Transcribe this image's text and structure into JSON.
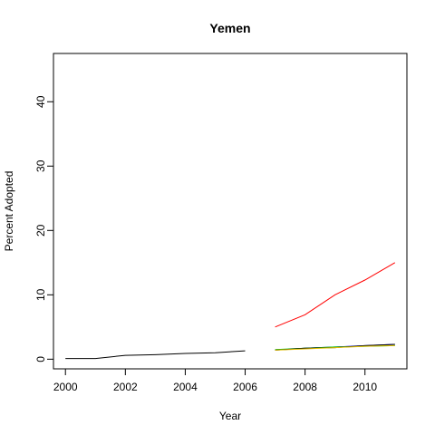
{
  "chart_data": {
    "type": "line",
    "title": "Yemen",
    "xlabel": "Year",
    "ylabel": "Percent Adopted",
    "xlim": [
      1999.6,
      2011.4
    ],
    "ylim": [
      -1.5,
      47.5
    ],
    "xticks": [
      2000,
      2002,
      2004,
      2006,
      2008,
      2010
    ],
    "yticks": [
      0,
      10,
      20,
      30,
      40
    ],
    "grid": false,
    "series": [
      {
        "color": "#000000",
        "x": [
          2000,
          2001,
          2002,
          2003,
          2004,
          2005,
          2006
        ],
        "y": [
          0.1,
          0.1,
          0.6,
          0.7,
          0.9,
          1.0,
          1.3
        ]
      },
      {
        "color": "#ff0000",
        "x": [
          2007,
          2008,
          2009,
          2010,
          2011
        ],
        "y": [
          5.0,
          6.9,
          10.0,
          12.3,
          15.0
        ]
      },
      {
        "color": "#0000ff",
        "x": [
          2007,
          2008,
          2009,
          2010,
          2011
        ],
        "y": [
          1.4,
          1.7,
          1.9,
          2.1,
          2.3
        ]
      },
      {
        "color": "#00cc00",
        "x": [
          2007,
          2008,
          2009,
          2010,
          2011
        ],
        "y": [
          1.5,
          1.7,
          1.9,
          2.0,
          2.1
        ]
      },
      {
        "color": "#000000",
        "x": [
          2007,
          2008,
          2009,
          2010,
          2011
        ],
        "y": [
          1.4,
          1.7,
          1.8,
          2.1,
          2.3
        ]
      },
      {
        "color": "#e6c200",
        "x": [
          2007,
          2008,
          2009,
          2010,
          2011
        ],
        "y": [
          1.4,
          1.6,
          1.8,
          2.0,
          2.1
        ]
      }
    ]
  }
}
